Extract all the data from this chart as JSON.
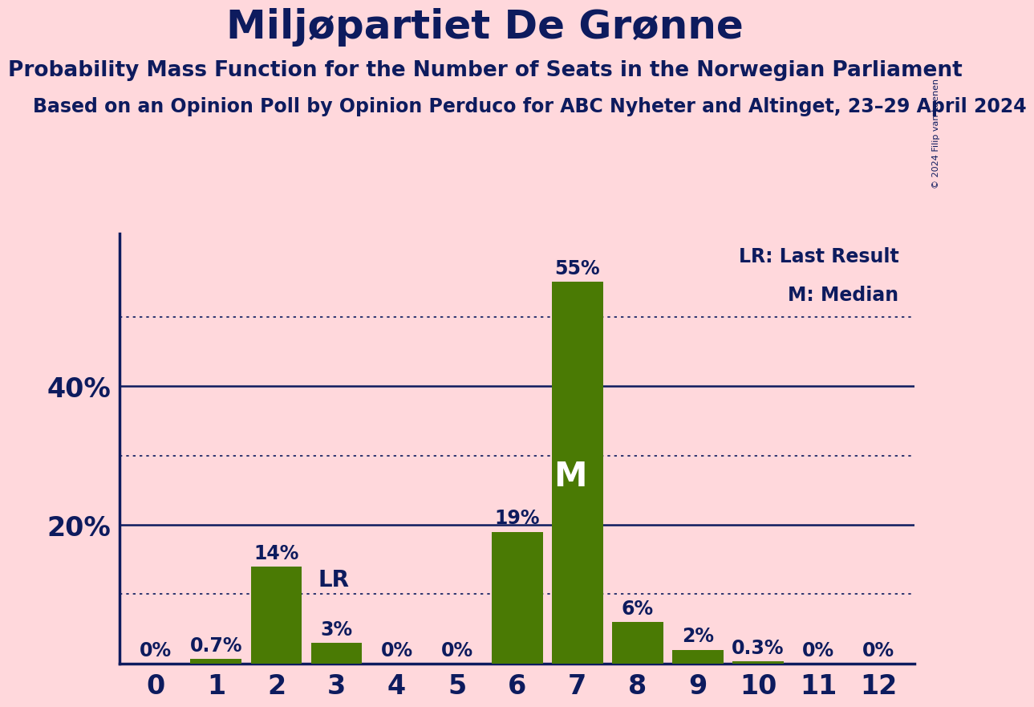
{
  "title": "Miljøpartiet De Grønne",
  "subtitle": "Probability Mass Function for the Number of Seats in the Norwegian Parliament",
  "source": "Based on an Opinion Poll by Opinion Perduco for ABC Nyheter and Altinget, 23–29 April 2024",
  "copyright": "© 2024 Filip van Laenen",
  "categories": [
    0,
    1,
    2,
    3,
    4,
    5,
    6,
    7,
    8,
    9,
    10,
    11,
    12
  ],
  "values": [
    0.0,
    0.7,
    14.0,
    3.0,
    0.0,
    0.0,
    19.0,
    55.0,
    6.0,
    2.0,
    0.3,
    0.0,
    0.0
  ],
  "labels": [
    "0%",
    "0.7%",
    "14%",
    "3%",
    "0%",
    "0%",
    "19%",
    "55%",
    "6%",
    "2%",
    "0.3%",
    "0%",
    "0%"
  ],
  "bar_color": "#4a7a04",
  "background_color": "#FFD8DC",
  "title_color": "#0d1b5e",
  "axis_color": "#0d1b5e",
  "label_color": "#0d1b5e",
  "bar_label_color_white": "#ffffff",
  "lr_index": 3,
  "median_index": 7,
  "yticks_solid": [
    0,
    20,
    40
  ],
  "yticks_dotted": [
    10,
    30,
    50
  ],
  "ylim": [
    0,
    62
  ],
  "legend_lr": "LR: Last Result",
  "legend_m": "M: Median",
  "dotted_color": "#0d1b5e",
  "solid_line_color": "#0d1b5e",
  "title_fontsize": 36,
  "subtitle_fontsize": 19,
  "source_fontsize": 17,
  "ytick_fontsize": 24,
  "xtick_fontsize": 24,
  "bar_label_fontsize": 17,
  "legend_fontsize": 17,
  "lr_fontsize": 20,
  "m_fontsize": 30
}
